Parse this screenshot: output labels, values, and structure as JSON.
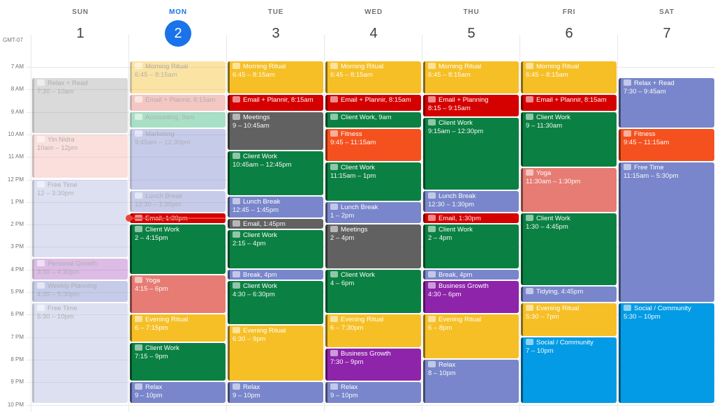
{
  "timezone": "GMT-07",
  "colors": {
    "today": "#1a73e8",
    "now_indicator": "#ea4335",
    "morning": "#f6bf26",
    "email": "#d50000",
    "client": "#0b8043",
    "meetings": "#616161",
    "fitness": "#f4511e",
    "lunch": "#7986cb",
    "free": "#7986cb",
    "business": "#8e24aa",
    "yoga": "#e67c73",
    "social": "#039be5",
    "relax_read": "#7986cb",
    "accounting": "#33b679",
    "yin": "#f4b5ad",
    "personal_growth": "#ad5fc2",
    "sun_gray": "#a8a8a8"
  },
  "now": {
    "day_index": 1,
    "hour": 13.72
  },
  "hours": [
    "7 AM",
    "8 AM",
    "9 AM",
    "10 AM",
    "11 AM",
    "12 PM",
    "1 PM",
    "2 PM",
    "3 PM",
    "4 PM",
    "5 PM",
    "6 PM",
    "7 PM",
    "8 PM",
    "9 PM",
    "10 PM"
  ],
  "days": [
    {
      "name": "SUN",
      "num": "1",
      "today": false,
      "events": [
        {
          "title": "Relax + Read",
          "time": "7:30 – 10am",
          "start": 7.5,
          "end": 10,
          "color": "#a8a8a8",
          "icon": "book-icon",
          "past": true
        },
        {
          "title": "Yin Nidra",
          "time": "10am – 12pm",
          "start": 10,
          "end": 12,
          "color": "#f4b5ad",
          "icon": "lotus-icon",
          "past": true
        },
        {
          "title": "Free Time",
          "time": "12 – 3:30pm",
          "start": 12,
          "end": 15.5,
          "color": "#b0b7e0",
          "icon": "meditation-icon",
          "past": true
        },
        {
          "title": "Personal Growth",
          "time": "3:30 – 4:30pm",
          "start": 15.5,
          "end": 16.5,
          "color": "#ad5fc2",
          "icon": "sprout-icon",
          "past": true
        },
        {
          "title": "Weekly Planning",
          "time": "4:30 – 5:30pm",
          "start": 16.5,
          "end": 17.5,
          "color": "#7986cb",
          "icon": "pencil-icon",
          "past": true
        },
        {
          "title": "Free Time",
          "time": "5:30 – 10pm",
          "start": 17.5,
          "end": 22,
          "color": "#b0b7e0",
          "icon": "meditation-icon",
          "past": true
        }
      ]
    },
    {
      "name": "MON",
      "num": "2",
      "today": true,
      "events": [
        {
          "title": "Morning Ritual",
          "time": "6:45 – 8:15am",
          "start": 6.75,
          "end": 8.25,
          "color": "#f6bf26",
          "icon": "coffee-icon",
          "past": true
        },
        {
          "title": "Email + Plannir,",
          "time": "8:15am",
          "start": 8.25,
          "end": 9,
          "color": "#e67c73",
          "icon": "email-icon",
          "past": true,
          "single": true
        },
        {
          "title": "Accounting,",
          "time": "9am",
          "start": 9,
          "end": 9.75,
          "color": "#33b679",
          "icon": "money-icon",
          "past": true,
          "single": true
        },
        {
          "title": "Marketing",
          "time": "9:45am – 12:30pm",
          "start": 9.75,
          "end": 12.5,
          "color": "#7986cb",
          "icon": "chart-icon",
          "past": true
        },
        {
          "title": "Lunch Break",
          "time": "12:30 – 1:30pm",
          "start": 12.5,
          "end": 13.5,
          "color": "#7986cb",
          "icon": "lunch-icon",
          "past": true
        },
        {
          "title": "Email,",
          "time": "1:30pm",
          "start": 13.5,
          "end": 14,
          "color": "#d50000",
          "icon": "email-icon",
          "past": false,
          "single": true
        },
        {
          "title": "Client Work",
          "time": "2 – 4:15pm",
          "start": 14,
          "end": 16.25,
          "color": "#0b8043",
          "icon": "person-icon",
          "past": false
        },
        {
          "title": "Yoga",
          "time": "4:15 – 6pm",
          "start": 16.25,
          "end": 18,
          "color": "#e67c73",
          "icon": "yoga-icon",
          "past": false
        },
        {
          "title": "Evening Ritual",
          "time": "6 – 7:15pm",
          "start": 18,
          "end": 19.25,
          "color": "#f6bf26",
          "icon": "sparkle-icon",
          "past": false
        },
        {
          "title": "Client Work",
          "time": "7:15 – 9pm",
          "start": 19.25,
          "end": 21,
          "color": "#0b8043",
          "icon": "person-icon",
          "past": false
        },
        {
          "title": "Relax",
          "time": "9 – 10pm",
          "start": 21,
          "end": 22,
          "color": "#7986cb",
          "icon": "meditation-icon",
          "past": false
        }
      ]
    },
    {
      "name": "TUE",
      "num": "3",
      "today": false,
      "events": [
        {
          "title": "Morning Ritual",
          "time": "6:45 – 8:15am",
          "start": 6.75,
          "end": 8.25,
          "color": "#f6bf26",
          "icon": "coffee-icon",
          "past": false
        },
        {
          "title": "Email + Plannir,",
          "time": "8:15am",
          "start": 8.25,
          "end": 9,
          "color": "#d50000",
          "icon": "email-icon",
          "past": false,
          "single": true
        },
        {
          "title": "Meetings",
          "time": "9 – 10:45am",
          "start": 9,
          "end": 10.75,
          "color": "#616161",
          "icon": "chat-icon",
          "past": false
        },
        {
          "title": "Client Work",
          "time": "10:45am – 12:45pm",
          "start": 10.75,
          "end": 12.75,
          "color": "#0b8043",
          "icon": "person-icon",
          "past": false
        },
        {
          "title": "Lunch Break",
          "time": "12:45 – 1:45pm",
          "start": 12.75,
          "end": 13.75,
          "color": "#7986cb",
          "icon": "lunch-icon",
          "past": false
        },
        {
          "title": "Email,",
          "time": "1:45pm",
          "start": 13.75,
          "end": 14.25,
          "color": "#616161",
          "icon": "email-icon",
          "past": false,
          "single": true
        },
        {
          "title": "Client Work",
          "time": "2:15 – 4pm",
          "start": 14.25,
          "end": 16,
          "color": "#0b8043",
          "icon": "person-icon",
          "past": false
        },
        {
          "title": "Break,",
          "time": "4pm",
          "start": 16,
          "end": 16.5,
          "color": "#7986cb",
          "icon": "meditation-icon",
          "past": false,
          "single": true
        },
        {
          "title": "Client Work",
          "time": "4:30 – 6:30pm",
          "start": 16.5,
          "end": 18.5,
          "color": "#0b8043",
          "icon": "person-icon",
          "past": false
        },
        {
          "title": "Evening Ritual",
          "time": "6:30 – 9pm",
          "start": 18.5,
          "end": 21,
          "color": "#f6bf26",
          "icon": "sparkle-icon",
          "past": false
        },
        {
          "title": "Relax",
          "time": "9 – 10pm",
          "start": 21,
          "end": 22,
          "color": "#7986cb",
          "icon": "meditation-icon",
          "past": false
        }
      ]
    },
    {
      "name": "WED",
      "num": "4",
      "today": false,
      "events": [
        {
          "title": "Morning Ritual",
          "time": "6:45 – 8:15am",
          "start": 6.75,
          "end": 8.25,
          "color": "#f6bf26",
          "icon": "coffee-icon",
          "past": false
        },
        {
          "title": "Email + Plannir,",
          "time": "8:15am",
          "start": 8.25,
          "end": 9,
          "color": "#d50000",
          "icon": "email-icon",
          "past": false,
          "single": true
        },
        {
          "title": "Client Work,",
          "time": "9am",
          "start": 9,
          "end": 9.75,
          "color": "#0b8043",
          "icon": "person-icon",
          "past": false,
          "single": true
        },
        {
          "title": "Fitness",
          "time": "9:45 – 11:15am",
          "start": 9.75,
          "end": 11.25,
          "color": "#f4511e",
          "icon": "fitness-icon",
          "past": false
        },
        {
          "title": "Client Work",
          "time": "11:15am – 1pm",
          "start": 11.25,
          "end": 13,
          "color": "#0b8043",
          "icon": "person-icon",
          "past": false
        },
        {
          "title": "Lunch Break",
          "time": "1 – 2pm",
          "start": 13,
          "end": 14,
          "color": "#7986cb",
          "icon": "lunch-icon",
          "past": false
        },
        {
          "title": "Meetings",
          "time": "2 – 4pm",
          "start": 14,
          "end": 16,
          "color": "#616161",
          "icon": "chat-icon",
          "past": false
        },
        {
          "title": "Client Work",
          "time": "4 – 6pm",
          "start": 16,
          "end": 18,
          "color": "#0b8043",
          "icon": "person-icon",
          "past": false
        },
        {
          "title": "Evening Ritual",
          "time": "6 – 7:30pm",
          "start": 18,
          "end": 19.5,
          "color": "#f6bf26",
          "icon": "sparkle-icon",
          "past": false
        },
        {
          "title": "Business Growth",
          "time": "7:30 – 9pm",
          "start": 19.5,
          "end": 21,
          "color": "#8e24aa",
          "icon": "rocket-icon",
          "past": false
        },
        {
          "title": "Relax",
          "time": "9 – 10pm",
          "start": 21,
          "end": 22,
          "color": "#7986cb",
          "icon": "meditation-icon",
          "past": false
        }
      ]
    },
    {
      "name": "THU",
      "num": "5",
      "today": false,
      "events": [
        {
          "title": "Morning Ritual",
          "time": "6:45 – 8:15am",
          "start": 6.75,
          "end": 8.25,
          "color": "#f6bf26",
          "icon": "coffee-icon",
          "past": false
        },
        {
          "title": "Email + Planning",
          "time": "8:15 – 9:15am",
          "start": 8.25,
          "end": 9.25,
          "color": "#d50000",
          "icon": "email-icon",
          "past": false
        },
        {
          "title": "Client Work",
          "time": "9:15am – 12:30pm",
          "start": 9.25,
          "end": 12.5,
          "color": "#0b8043",
          "icon": "person-icon",
          "past": false
        },
        {
          "title": "Lunch Break",
          "time": "12:30 – 1:30pm",
          "start": 12.5,
          "end": 13.5,
          "color": "#7986cb",
          "icon": "lunch-icon",
          "past": false
        },
        {
          "title": "Email,",
          "time": "1:30pm",
          "start": 13.5,
          "end": 14,
          "color": "#d50000",
          "icon": "email-icon",
          "past": false,
          "single": true
        },
        {
          "title": "Client Work",
          "time": "2 – 4pm",
          "start": 14,
          "end": 16,
          "color": "#0b8043",
          "icon": "person-icon",
          "past": false
        },
        {
          "title": "Break,",
          "time": "4pm",
          "start": 16,
          "end": 16.5,
          "color": "#7986cb",
          "icon": "meditation-icon",
          "past": false,
          "single": true
        },
        {
          "title": "Business Growth",
          "time": "4:30 – 6pm",
          "start": 16.5,
          "end": 18,
          "color": "#8e24aa",
          "icon": "rocket-icon",
          "past": false
        },
        {
          "title": "Evening Ritual",
          "time": "6 – 8pm",
          "start": 18,
          "end": 20,
          "color": "#f6bf26",
          "icon": "sparkle-icon",
          "past": false
        },
        {
          "title": "Relax",
          "time": "8 – 10pm",
          "start": 20,
          "end": 22,
          "color": "#7986cb",
          "icon": "meditation-icon",
          "past": false
        }
      ]
    },
    {
      "name": "FRI",
      "num": "6",
      "today": false,
      "events": [
        {
          "title": "Morning Ritual",
          "time": "6:45 – 8:15am",
          "start": 6.75,
          "end": 8.25,
          "color": "#f6bf26",
          "icon": "coffee-icon",
          "past": false
        },
        {
          "title": "Email + Plannir,",
          "time": "8:15am",
          "start": 8.25,
          "end": 9,
          "color": "#d50000",
          "icon": "email-icon",
          "past": false,
          "single": true
        },
        {
          "title": "Client Work",
          "time": "9 – 11:30am",
          "start": 9,
          "end": 11.5,
          "color": "#0b8043",
          "icon": "person-icon",
          "past": false
        },
        {
          "title": "Yoga",
          "time": "11:30am – 1:30pm",
          "start": 11.5,
          "end": 13.5,
          "color": "#e67c73",
          "icon": "yoga-icon",
          "past": false
        },
        {
          "title": "Client Work",
          "time": "1:30 – 4:45pm",
          "start": 13.5,
          "end": 16.75,
          "color": "#0b8043",
          "icon": "person-icon",
          "past": false
        },
        {
          "title": "Tidying,",
          "time": "4:45pm",
          "start": 16.75,
          "end": 17.5,
          "color": "#7986cb",
          "icon": "broom-icon",
          "past": false,
          "single": true
        },
        {
          "title": "Evening Ritual",
          "time": "5:30 – 7pm",
          "start": 17.5,
          "end": 19,
          "color": "#f6bf26",
          "icon": "sparkle-icon",
          "past": false
        },
        {
          "title": "Social / Community",
          "time": "7 – 10pm",
          "start": 19,
          "end": 22,
          "color": "#039be5",
          "icon": "people-icon",
          "past": false
        }
      ]
    },
    {
      "name": "SAT",
      "num": "7",
      "today": false,
      "events": [
        {
          "title": "Relax + Read",
          "time": "7:30 – 9:45am",
          "start": 7.5,
          "end": 9.75,
          "color": "#7986cb",
          "icon": "book-icon",
          "past": false
        },
        {
          "title": "Fitness",
          "time": "9:45 – 11:15am",
          "start": 9.75,
          "end": 11.25,
          "color": "#f4511e",
          "icon": "fitness-icon",
          "past": false
        },
        {
          "title": "Free Time",
          "time": "11:15am – 5:30pm",
          "start": 11.25,
          "end": 17.5,
          "color": "#7986cb",
          "icon": "meditation-icon",
          "past": false
        },
        {
          "title": "Social / Community",
          "time": "5:30 – 10pm",
          "start": 17.5,
          "end": 22,
          "color": "#039be5",
          "icon": "people-icon",
          "past": false
        }
      ]
    }
  ]
}
